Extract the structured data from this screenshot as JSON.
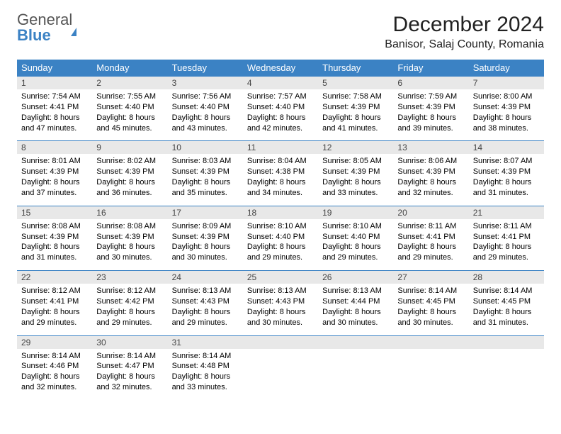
{
  "brand": {
    "general": "General",
    "blue": "Blue"
  },
  "title": "December 2024",
  "location": "Banisor, Salaj County, Romania",
  "dayHeaders": [
    "Sunday",
    "Monday",
    "Tuesday",
    "Wednesday",
    "Thursday",
    "Friday",
    "Saturday"
  ],
  "colors": {
    "header_bg": "#3b82c4",
    "header_text": "#ffffff",
    "daynum_bg": "#e8e8e8",
    "daynum_border": "#3b82c4",
    "body_bg": "#ffffff",
    "text": "#000000"
  },
  "typography": {
    "title_fontsize_pt": 22,
    "location_fontsize_pt": 12,
    "header_fontsize_pt": 10,
    "cell_fontsize_pt": 8
  },
  "weeks": [
    [
      {
        "n": "1",
        "sunrise": "Sunrise: 7:54 AM",
        "sunset": "Sunset: 4:41 PM",
        "daylight": "Daylight: 8 hours and 47 minutes."
      },
      {
        "n": "2",
        "sunrise": "Sunrise: 7:55 AM",
        "sunset": "Sunset: 4:40 PM",
        "daylight": "Daylight: 8 hours and 45 minutes."
      },
      {
        "n": "3",
        "sunrise": "Sunrise: 7:56 AM",
        "sunset": "Sunset: 4:40 PM",
        "daylight": "Daylight: 8 hours and 43 minutes."
      },
      {
        "n": "4",
        "sunrise": "Sunrise: 7:57 AM",
        "sunset": "Sunset: 4:40 PM",
        "daylight": "Daylight: 8 hours and 42 minutes."
      },
      {
        "n": "5",
        "sunrise": "Sunrise: 7:58 AM",
        "sunset": "Sunset: 4:39 PM",
        "daylight": "Daylight: 8 hours and 41 minutes."
      },
      {
        "n": "6",
        "sunrise": "Sunrise: 7:59 AM",
        "sunset": "Sunset: 4:39 PM",
        "daylight": "Daylight: 8 hours and 39 minutes."
      },
      {
        "n": "7",
        "sunrise": "Sunrise: 8:00 AM",
        "sunset": "Sunset: 4:39 PM",
        "daylight": "Daylight: 8 hours and 38 minutes."
      }
    ],
    [
      {
        "n": "8",
        "sunrise": "Sunrise: 8:01 AM",
        "sunset": "Sunset: 4:39 PM",
        "daylight": "Daylight: 8 hours and 37 minutes."
      },
      {
        "n": "9",
        "sunrise": "Sunrise: 8:02 AM",
        "sunset": "Sunset: 4:39 PM",
        "daylight": "Daylight: 8 hours and 36 minutes."
      },
      {
        "n": "10",
        "sunrise": "Sunrise: 8:03 AM",
        "sunset": "Sunset: 4:39 PM",
        "daylight": "Daylight: 8 hours and 35 minutes."
      },
      {
        "n": "11",
        "sunrise": "Sunrise: 8:04 AM",
        "sunset": "Sunset: 4:38 PM",
        "daylight": "Daylight: 8 hours and 34 minutes."
      },
      {
        "n": "12",
        "sunrise": "Sunrise: 8:05 AM",
        "sunset": "Sunset: 4:39 PM",
        "daylight": "Daylight: 8 hours and 33 minutes."
      },
      {
        "n": "13",
        "sunrise": "Sunrise: 8:06 AM",
        "sunset": "Sunset: 4:39 PM",
        "daylight": "Daylight: 8 hours and 32 minutes."
      },
      {
        "n": "14",
        "sunrise": "Sunrise: 8:07 AM",
        "sunset": "Sunset: 4:39 PM",
        "daylight": "Daylight: 8 hours and 31 minutes."
      }
    ],
    [
      {
        "n": "15",
        "sunrise": "Sunrise: 8:08 AM",
        "sunset": "Sunset: 4:39 PM",
        "daylight": "Daylight: 8 hours and 31 minutes."
      },
      {
        "n": "16",
        "sunrise": "Sunrise: 8:08 AM",
        "sunset": "Sunset: 4:39 PM",
        "daylight": "Daylight: 8 hours and 30 minutes."
      },
      {
        "n": "17",
        "sunrise": "Sunrise: 8:09 AM",
        "sunset": "Sunset: 4:39 PM",
        "daylight": "Daylight: 8 hours and 30 minutes."
      },
      {
        "n": "18",
        "sunrise": "Sunrise: 8:10 AM",
        "sunset": "Sunset: 4:40 PM",
        "daylight": "Daylight: 8 hours and 29 minutes."
      },
      {
        "n": "19",
        "sunrise": "Sunrise: 8:10 AM",
        "sunset": "Sunset: 4:40 PM",
        "daylight": "Daylight: 8 hours and 29 minutes."
      },
      {
        "n": "20",
        "sunrise": "Sunrise: 8:11 AM",
        "sunset": "Sunset: 4:41 PM",
        "daylight": "Daylight: 8 hours and 29 minutes."
      },
      {
        "n": "21",
        "sunrise": "Sunrise: 8:11 AM",
        "sunset": "Sunset: 4:41 PM",
        "daylight": "Daylight: 8 hours and 29 minutes."
      }
    ],
    [
      {
        "n": "22",
        "sunrise": "Sunrise: 8:12 AM",
        "sunset": "Sunset: 4:41 PM",
        "daylight": "Daylight: 8 hours and 29 minutes."
      },
      {
        "n": "23",
        "sunrise": "Sunrise: 8:12 AM",
        "sunset": "Sunset: 4:42 PM",
        "daylight": "Daylight: 8 hours and 29 minutes."
      },
      {
        "n": "24",
        "sunrise": "Sunrise: 8:13 AM",
        "sunset": "Sunset: 4:43 PM",
        "daylight": "Daylight: 8 hours and 29 minutes."
      },
      {
        "n": "25",
        "sunrise": "Sunrise: 8:13 AM",
        "sunset": "Sunset: 4:43 PM",
        "daylight": "Daylight: 8 hours and 30 minutes."
      },
      {
        "n": "26",
        "sunrise": "Sunrise: 8:13 AM",
        "sunset": "Sunset: 4:44 PM",
        "daylight": "Daylight: 8 hours and 30 minutes."
      },
      {
        "n": "27",
        "sunrise": "Sunrise: 8:14 AM",
        "sunset": "Sunset: 4:45 PM",
        "daylight": "Daylight: 8 hours and 30 minutes."
      },
      {
        "n": "28",
        "sunrise": "Sunrise: 8:14 AM",
        "sunset": "Sunset: 4:45 PM",
        "daylight": "Daylight: 8 hours and 31 minutes."
      }
    ],
    [
      {
        "n": "29",
        "sunrise": "Sunrise: 8:14 AM",
        "sunset": "Sunset: 4:46 PM",
        "daylight": "Daylight: 8 hours and 32 minutes."
      },
      {
        "n": "30",
        "sunrise": "Sunrise: 8:14 AM",
        "sunset": "Sunset: 4:47 PM",
        "daylight": "Daylight: 8 hours and 32 minutes."
      },
      {
        "n": "31",
        "sunrise": "Sunrise: 8:14 AM",
        "sunset": "Sunset: 4:48 PM",
        "daylight": "Daylight: 8 hours and 33 minutes."
      },
      {
        "empty": true
      },
      {
        "empty": true
      },
      {
        "empty": true
      },
      {
        "empty": true
      }
    ]
  ]
}
